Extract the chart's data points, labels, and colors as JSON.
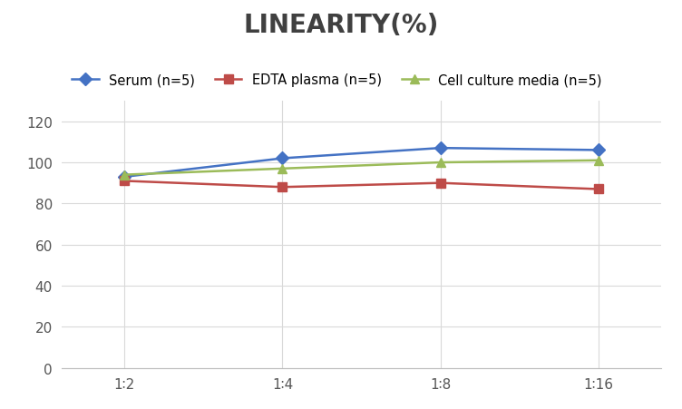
{
  "title": "LINEARITY(%)",
  "x_labels": [
    "1∶2",
    "1∶4",
    "1∶8",
    "1∶16"
  ],
  "x_positions": [
    0,
    1,
    2,
    3
  ],
  "series": [
    {
      "label": "Serum (n=5)",
      "values": [
        93,
        102,
        107,
        106
      ],
      "color": "#4472C4",
      "marker": "D",
      "linewidth": 1.8
    },
    {
      "label": "EDTA plasma (n=5)",
      "values": [
        91,
        88,
        90,
        87
      ],
      "color": "#BE4B48",
      "marker": "s",
      "linewidth": 1.8
    },
    {
      "label": "Cell culture media (n=5)",
      "values": [
        94,
        97,
        100,
        101
      ],
      "color": "#9BBB59",
      "marker": "^",
      "linewidth": 1.8
    }
  ],
  "ylim": [
    0,
    130
  ],
  "yticks": [
    0,
    20,
    40,
    60,
    80,
    100,
    120
  ],
  "grid_color": "#D9D9D9",
  "background_color": "#FFFFFF",
  "title_fontsize": 20,
  "title_color": "#404040",
  "legend_fontsize": 10.5,
  "tick_fontsize": 11
}
